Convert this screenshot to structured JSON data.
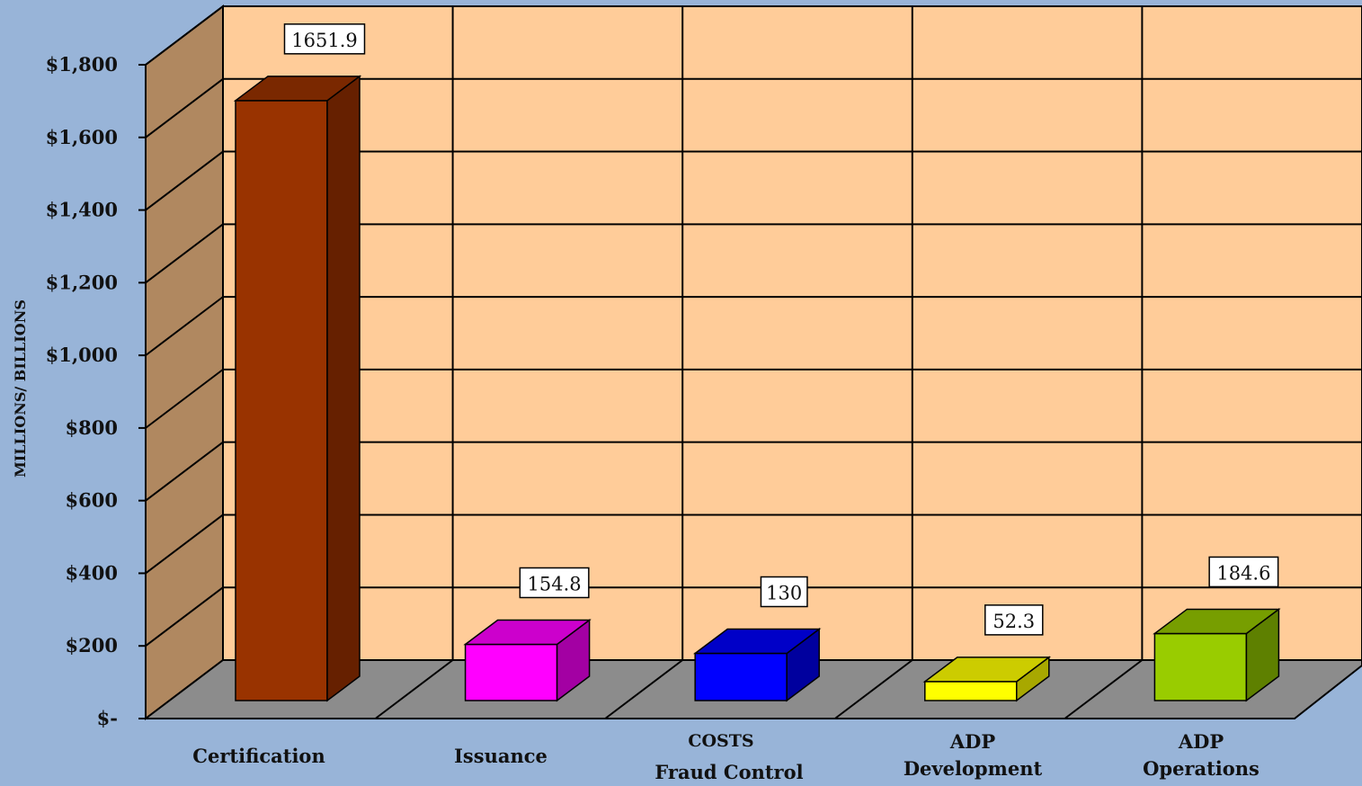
{
  "chart_data": {
    "type": "bar",
    "title": "",
    "ylabel": "MILLIONS/ BILLIONS",
    "xlabel": "COSTS",
    "ylim": [
      0,
      1800
    ],
    "y_ticks": [
      {
        "value": 0,
        "label": "$-"
      },
      {
        "value": 200,
        "label": "$200"
      },
      {
        "value": 400,
        "label": "$400"
      },
      {
        "value": 600,
        "label": "$600"
      },
      {
        "value": 800,
        "label": "$800"
      },
      {
        "value": 1000,
        "label": "$1,000"
      },
      {
        "value": 1200,
        "label": "$1,200"
      },
      {
        "value": 1400,
        "label": "$1,400"
      },
      {
        "value": 1600,
        "label": "$1,600"
      },
      {
        "value": 1800,
        "label": "$1,800"
      }
    ],
    "categories": [
      [
        "Certification"
      ],
      [
        "Issuance"
      ],
      [
        "Fraud Control"
      ],
      [
        "ADP",
        "Development"
      ],
      [
        "ADP",
        "Operations"
      ]
    ],
    "values": [
      1651.9,
      154.8,
      130,
      52.3,
      184.6
    ],
    "value_labels": [
      "1651.9",
      "154.8",
      "130",
      "52.3",
      "184.6"
    ],
    "colors": [
      {
        "front": "#993300",
        "side": "#662000",
        "top": "#7a2800"
      },
      {
        "front": "#ff00ff",
        "side": "#a300a3",
        "top": "#cc00cc"
      },
      {
        "front": "#0000ff",
        "side": "#00009e",
        "top": "#0000c8"
      },
      {
        "front": "#ffff00",
        "side": "#a8a800",
        "top": "#cccc00"
      },
      {
        "front": "#99cc00",
        "side": "#5e8000",
        "top": "#779e00"
      }
    ],
    "grid": true,
    "legend": "none"
  }
}
